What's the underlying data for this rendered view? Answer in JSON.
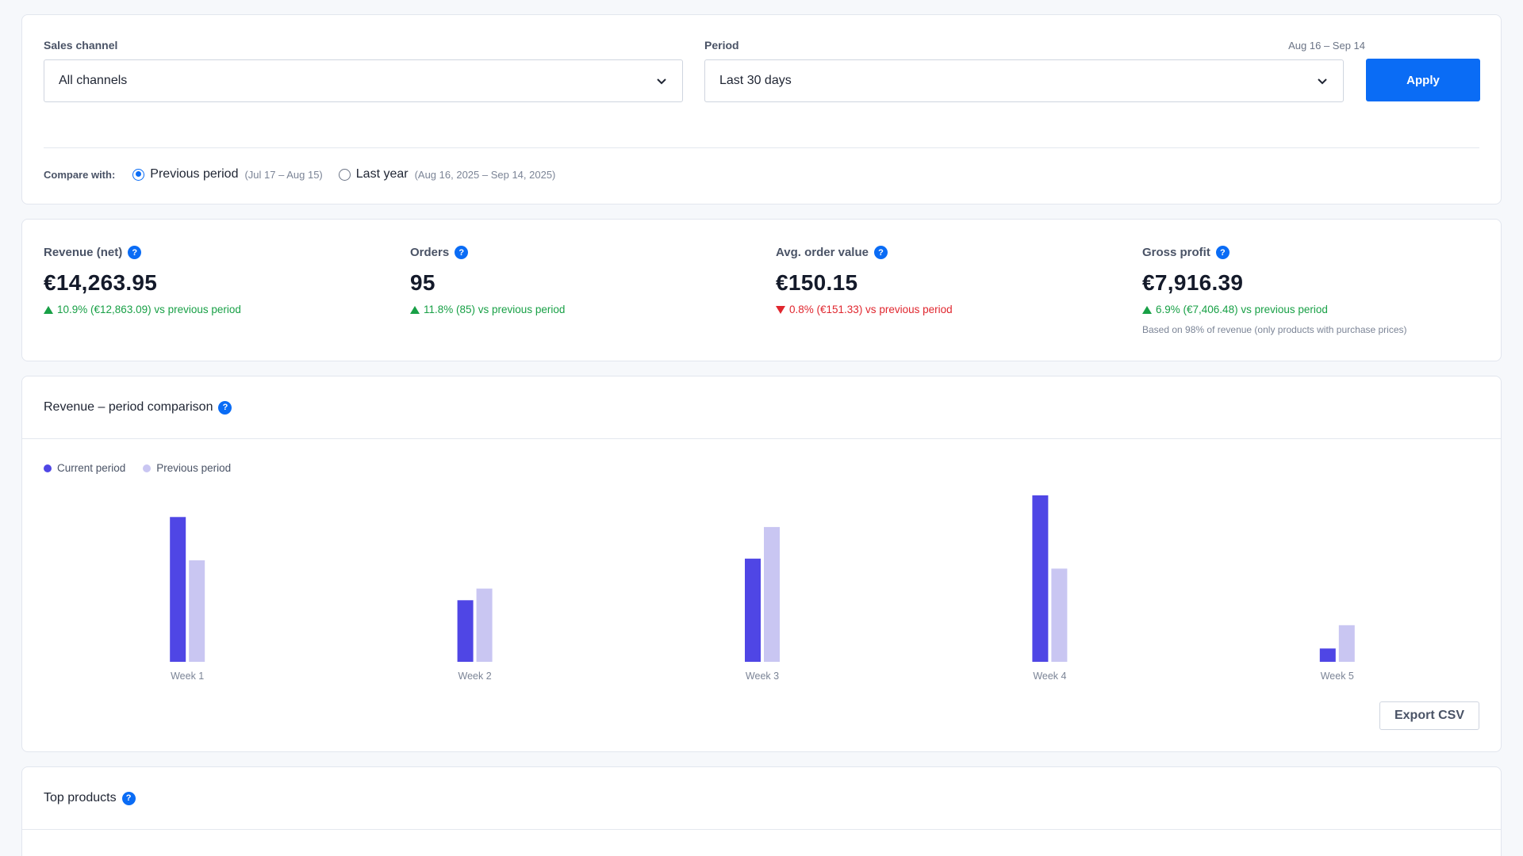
{
  "filters": {
    "sales_channel": {
      "label": "Sales channel",
      "value": "All channels"
    },
    "period": {
      "label": "Period",
      "value": "Last 30 days",
      "date_hint": "Aug 16 – Sep 14"
    },
    "apply_label": "Apply",
    "compare": {
      "label": "Compare with:",
      "options": [
        {
          "label": "Previous period",
          "range": "(Jul 17 – Aug 15)",
          "checked": true
        },
        {
          "label": "Last year",
          "range": "(Aug 16, 2025 – Sep 14, 2025)",
          "checked": false
        }
      ]
    }
  },
  "kpis": [
    {
      "label": "Revenue (net)",
      "value": "€14,263.95",
      "delta": "10.9% (€12,863.09) vs previous period",
      "direction": "up"
    },
    {
      "label": "Orders",
      "value": "95",
      "delta": "11.8% (85) vs previous period",
      "direction": "up"
    },
    {
      "label": "Avg. order value",
      "value": "€150.15",
      "delta": "0.8% (€151.33) vs previous period",
      "direction": "down"
    },
    {
      "label": "Gross profit",
      "value": "€7,916.39",
      "delta": "6.9% (€7,406.48) vs previous period",
      "direction": "up",
      "note": "Based on 98% of revenue (only products with purchase prices)"
    }
  ],
  "help_glyph": "?",
  "chart": {
    "title": "Revenue – period comparison",
    "export_label": "Export CSV"
  },
  "chart_data": {
    "type": "bar",
    "categories": [
      "Week 1",
      "Week 2",
      "Week 3",
      "Week 4",
      "Week 5"
    ],
    "series": [
      {
        "name": "Current period",
        "color": "#4f46e5",
        "values": [
          87,
          37,
          62,
          100,
          8
        ]
      },
      {
        "name": "Previous period",
        "color": "#c9c6f2",
        "values": [
          61,
          44,
          81,
          56,
          22
        ]
      }
    ],
    "ylim": [
      0,
      100
    ],
    "grid": false,
    "legend": "top-left"
  },
  "top_products": {
    "title": "Top products"
  },
  "colors": {
    "accent": "#0a6cf5",
    "up": "#18a046",
    "down": "#e0262e"
  }
}
